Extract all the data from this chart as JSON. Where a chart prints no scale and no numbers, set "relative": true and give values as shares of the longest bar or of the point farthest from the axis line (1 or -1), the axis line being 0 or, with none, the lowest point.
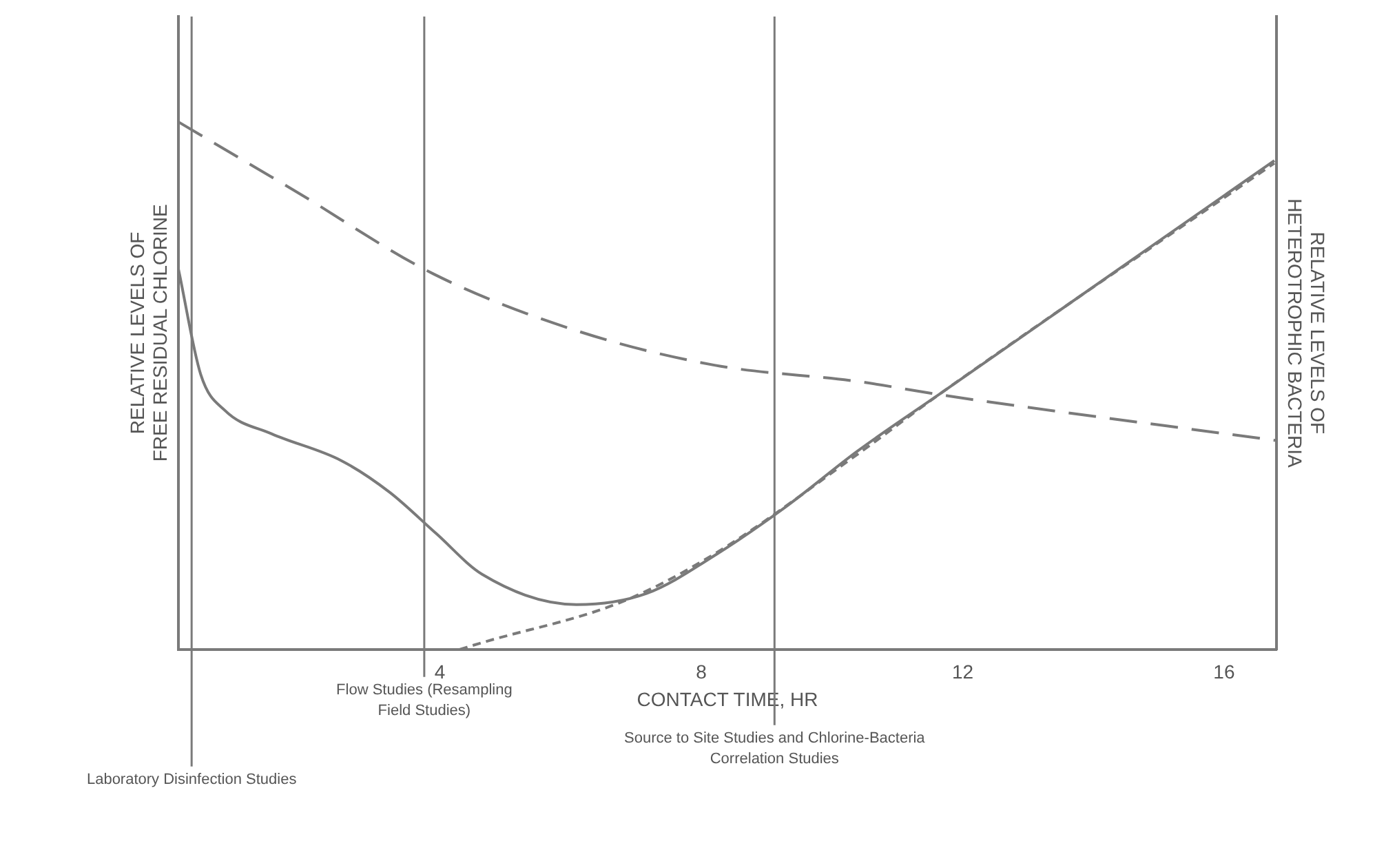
{
  "chart_data": {
    "type": "line",
    "relative": true,
    "xlabel": "CONTACT TIME, HR",
    "ylabel": "RELATIVE LEVELS OF FREE RESIDUAL CHLORINE",
    "y2label": "RELATIVE LEVELS OF HETEROTROPHIC BACTERIA",
    "xlim": [
      0,
      16.8
    ],
    "xticks": [
      4,
      8,
      12,
      16
    ],
    "grid": false,
    "legend": false,
    "marker": "none",
    "series": [
      {
        "color": "#7a7a7a",
        "line_style": "dashed",
        "x": [
          0,
          1.8,
          3.9,
          6.1,
          8.2,
          10.4,
          11.7,
          16.8
        ],
        "values": [
          1.0,
          0.868,
          0.712,
          0.604,
          0.539,
          0.508,
          0.482,
          0.396
        ]
      },
      {
        "color": "#7a7a7a",
        "line_style": "solid",
        "x": [
          0,
          0.34,
          0.71,
          1.42,
          2.49,
          3.23,
          3.94,
          4.65,
          6.09,
          7.16,
          8.24,
          9.31,
          10.39,
          11.68,
          16.77
        ],
        "values": [
          0.72,
          0.521,
          0.453,
          0.409,
          0.358,
          0.298,
          0.22,
          0.142,
          0.085,
          0.106,
          0.181,
          0.272,
          0.376,
          0.487,
          0.927
        ]
      },
      {
        "color": "#7a7a7a",
        "line_style": "dotted",
        "x": [
          4.3,
          4.65,
          6.8,
          8.24,
          10.39,
          11.68,
          16.77
        ],
        "values": [
          0,
          0.013,
          0.091,
          0.184,
          0.37,
          0.487,
          0.922
        ]
      }
    ],
    "ref_lines": [
      {
        "axis": "x",
        "value": 0.2,
        "label": "Laboratory Disinfection Studies",
        "color": "#7a7a7a"
      },
      {
        "axis": "x",
        "value": 3.76,
        "label": "Flow Studies (Resampling Field Studies)",
        "color": "#7a7a7a"
      },
      {
        "axis": "x",
        "value": 9.12,
        "label": "Source to Site Studies and Chlorine-Bacteria Correlation Studies",
        "color": "#7a7a7a"
      }
    ]
  }
}
